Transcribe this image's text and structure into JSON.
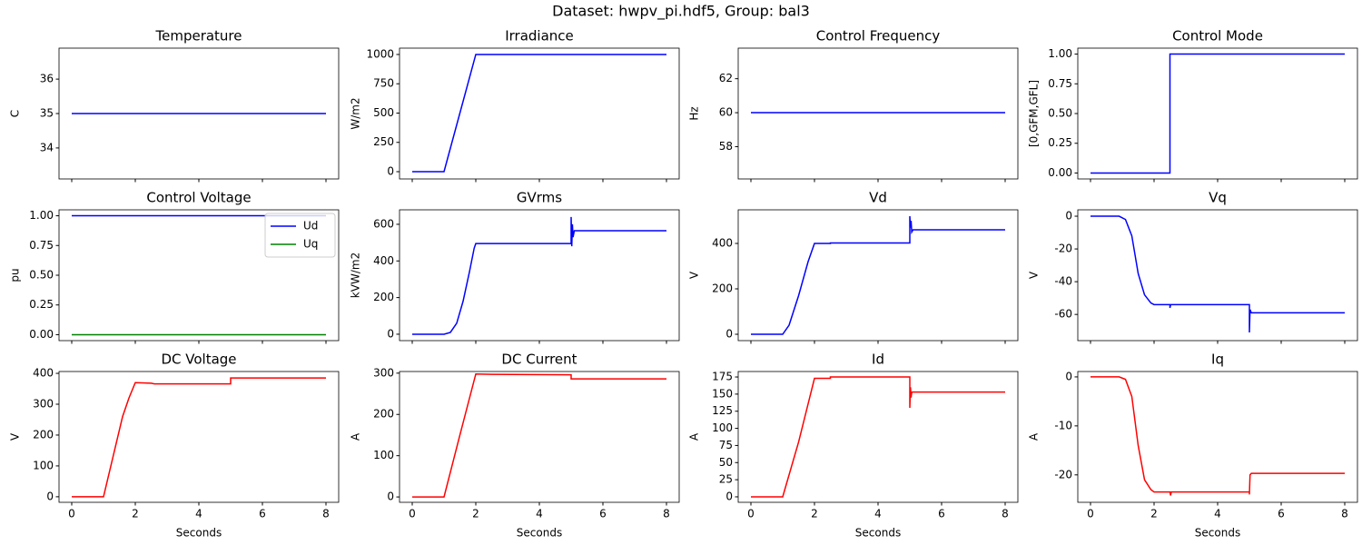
{
  "title": "Dataset: hwpv_pi.hdf5, Group: bal3",
  "chart_data": [
    {
      "type": "line",
      "title": "Temperature",
      "ylabel": "C",
      "xlim": [
        -0.4,
        8.4
      ],
      "ylim": [
        33.1,
        36.9
      ],
      "xticks": [
        0,
        2,
        4,
        6,
        8
      ],
      "yticks": [
        34,
        35,
        36
      ],
      "x": [
        0,
        8
      ],
      "series": [
        {
          "color": "#0000ff",
          "values": [
            35,
            35
          ]
        }
      ]
    },
    {
      "type": "line",
      "title": "Irradiance",
      "ylabel": "W/m2",
      "xlim": [
        -0.4,
        8.4
      ],
      "ylim": [
        -62,
        1054
      ],
      "xticks": [
        0,
        2,
        4,
        6,
        8
      ],
      "yticks": [
        0,
        250,
        500,
        750,
        1000
      ],
      "x": [
        0,
        1,
        2,
        8
      ],
      "series": [
        {
          "color": "#0000ff",
          "values": [
            0,
            0,
            1000,
            1000
          ]
        }
      ]
    },
    {
      "type": "line",
      "title": "Control Frequency",
      "ylabel": "Hz",
      "xlim": [
        -0.4,
        8.4
      ],
      "ylim": [
        56.1,
        63.8
      ],
      "xticks": [
        0,
        2,
        4,
        6,
        8
      ],
      "yticks": [
        58,
        60,
        62
      ],
      "x": [
        0,
        8
      ],
      "series": [
        {
          "color": "#0000ff",
          "values": [
            60,
            60
          ]
        }
      ]
    },
    {
      "type": "line",
      "title": "Control Mode",
      "ylabel": "[0,GFM,GFL]",
      "xlim": [
        -0.4,
        8.4
      ],
      "ylim": [
        -0.05,
        1.05
      ],
      "xticks": [
        0,
        2,
        4,
        6,
        8
      ],
      "yticks": [
        {
          "value": 0,
          "label": "0.00"
        },
        {
          "value": 0.25,
          "label": "0.25"
        },
        {
          "value": 0.5,
          "label": "0.50"
        },
        {
          "value": 0.75,
          "label": "0.75"
        },
        {
          "value": 1,
          "label": "1.00"
        }
      ],
      "x": [
        0,
        2.5,
        2.5,
        8
      ],
      "series": [
        {
          "color": "#0000ff",
          "values": [
            0,
            0,
            1,
            1
          ]
        }
      ]
    },
    {
      "type": "line",
      "title": "Control Voltage",
      "ylabel": "pu",
      "xlim": [
        -0.4,
        8.4
      ],
      "ylim": [
        -0.05,
        1.05
      ],
      "xticks": [
        0,
        2,
        4,
        6,
        8
      ],
      "yticks": [
        {
          "value": 0,
          "label": "0.00"
        },
        {
          "value": 0.25,
          "label": "0.25"
        },
        {
          "value": 0.5,
          "label": "0.50"
        },
        {
          "value": 0.75,
          "label": "0.75"
        },
        {
          "value": 1,
          "label": "1.00"
        }
      ],
      "legend": "upper right",
      "x": [
        0,
        8
      ],
      "series": [
        {
          "name": "Ud",
          "color": "#0000ff",
          "values": [
            1,
            1
          ]
        },
        {
          "name": "Uq",
          "color": "#008000",
          "values": [
            0,
            0
          ]
        }
      ]
    },
    {
      "type": "line",
      "title": "GVrms",
      "ylabel": "kVW/m2",
      "xlim": [
        -0.4,
        8.4
      ],
      "ylim": [
        -35,
        679
      ],
      "xticks": [
        0,
        2,
        4,
        6,
        8
      ],
      "yticks": [
        0,
        200,
        400,
        600
      ],
      "x": [
        0,
        1,
        1.2,
        1.4,
        1.6,
        1.8,
        1.95,
        2,
        2.5,
        2.5,
        5,
        5,
        5.02,
        5.04,
        5.06,
        5.1,
        8
      ],
      "series": [
        {
          "color": "#0000ff",
          "values": [
            0,
            0,
            10,
            60,
            180,
            340,
            470,
            495,
            495,
            495,
            495,
            640,
            480,
            600,
            530,
            565,
            565
          ]
        }
      ]
    },
    {
      "type": "line",
      "title": "Vd",
      "ylabel": "V",
      "xlim": [
        -0.4,
        8.4
      ],
      "ylim": [
        -28,
        548
      ],
      "xticks": [
        0,
        2,
        4,
        6,
        8
      ],
      "yticks": [
        0,
        200,
        400
      ],
      "x": [
        0,
        1,
        1.2,
        1.5,
        1.8,
        2,
        2.5,
        2.5,
        5,
        5,
        5.02,
        5.04,
        5.06,
        5.1,
        8
      ],
      "series": [
        {
          "color": "#0000ff",
          "values": [
            0,
            0,
            40,
            170,
            320,
            400,
            400,
            402,
            402,
            520,
            470,
            500,
            450,
            460,
            460
          ]
        }
      ]
    },
    {
      "type": "line",
      "title": "Vq",
      "ylabel": "V",
      "xlim": [
        -0.4,
        8.4
      ],
      "ylim": [
        -76,
        3.9
      ],
      "xticks": [
        0,
        2,
        4,
        6,
        8
      ],
      "yticks": [
        -60,
        -40,
        -20,
        0
      ],
      "x": [
        0,
        0.9,
        1.1,
        1.3,
        1.5,
        1.7,
        1.9,
        2,
        2.5,
        2.5,
        2.52,
        5,
        5,
        5.02,
        5.06,
        8
      ],
      "series": [
        {
          "color": "#0000ff",
          "values": [
            0,
            0,
            -2,
            -12,
            -35,
            -48,
            -53,
            -54,
            -54,
            -56,
            -54,
            -54,
            -71,
            -57,
            -59,
            -59
          ]
        }
      ]
    },
    {
      "type": "line",
      "title": "DC Voltage",
      "ylabel": "V",
      "xlabel": "Seconds",
      "xlim": [
        -0.4,
        8.4
      ],
      "ylim": [
        -18,
        406
      ],
      "xticks": [
        0,
        2,
        4,
        6,
        8
      ],
      "yticks": [
        0,
        100,
        200,
        300,
        400
      ],
      "x": [
        0,
        1,
        1.3,
        1.6,
        1.8,
        2,
        2.5,
        2.6,
        5,
        5,
        8
      ],
      "series": [
        {
          "color": "#ff0000",
          "values": [
            0,
            0,
            130,
            260,
            320,
            370,
            368,
            366,
            366,
            385,
            385
          ]
        }
      ]
    },
    {
      "type": "line",
      "title": "DC Current",
      "ylabel": "A",
      "xlabel": "Seconds",
      "xlim": [
        -0.4,
        8.4
      ],
      "ylim": [
        -13,
        304
      ],
      "xticks": [
        0,
        2,
        4,
        6,
        8
      ],
      "yticks": [
        0,
        100,
        200,
        300
      ],
      "x": [
        0,
        1,
        1.5,
        2,
        2.5,
        5,
        5,
        8
      ],
      "series": [
        {
          "color": "#ff0000",
          "values": [
            0,
            0,
            150,
            298,
            297,
            296,
            286,
            286
          ]
        }
      ]
    },
    {
      "type": "line",
      "title": "Id",
      "ylabel": "A",
      "xlabel": "Seconds",
      "xlim": [
        -0.4,
        8.4
      ],
      "ylim": [
        -8,
        183
      ],
      "xticks": [
        0,
        2,
        4,
        6,
        8
      ],
      "yticks": [
        0,
        25,
        50,
        75,
        100,
        125,
        150,
        175
      ],
      "x": [
        0,
        1,
        1.5,
        2,
        2.5,
        2.5,
        5,
        5,
        5.02,
        5.04,
        5.06,
        8
      ],
      "series": [
        {
          "color": "#ff0000",
          "values": [
            0,
            0,
            80,
            173,
            173,
            175,
            175,
            130,
            160,
            145,
            153,
            153
          ]
        }
      ]
    },
    {
      "type": "line",
      "title": "Iq",
      "ylabel": "A",
      "xlabel": "Seconds",
      "xlim": [
        -0.4,
        8.4
      ],
      "ylim": [
        -25.6,
        1.1
      ],
      "xticks": [
        0,
        2,
        4,
        6,
        8
      ],
      "yticks": [
        -20,
        -10,
        0
      ],
      "x": [
        0,
        0.9,
        1.1,
        1.3,
        1.5,
        1.7,
        1.9,
        2,
        2.5,
        2.52,
        2.54,
        5,
        5,
        5.02,
        5.06,
        8
      ],
      "series": [
        {
          "color": "#ff0000",
          "values": [
            0,
            0,
            -0.5,
            -4,
            -14,
            -21,
            -23,
            -23.5,
            -23.5,
            -24.2,
            -23.5,
            -23.5,
            -24,
            -20,
            -19.7,
            -19.7
          ]
        }
      ]
    }
  ]
}
